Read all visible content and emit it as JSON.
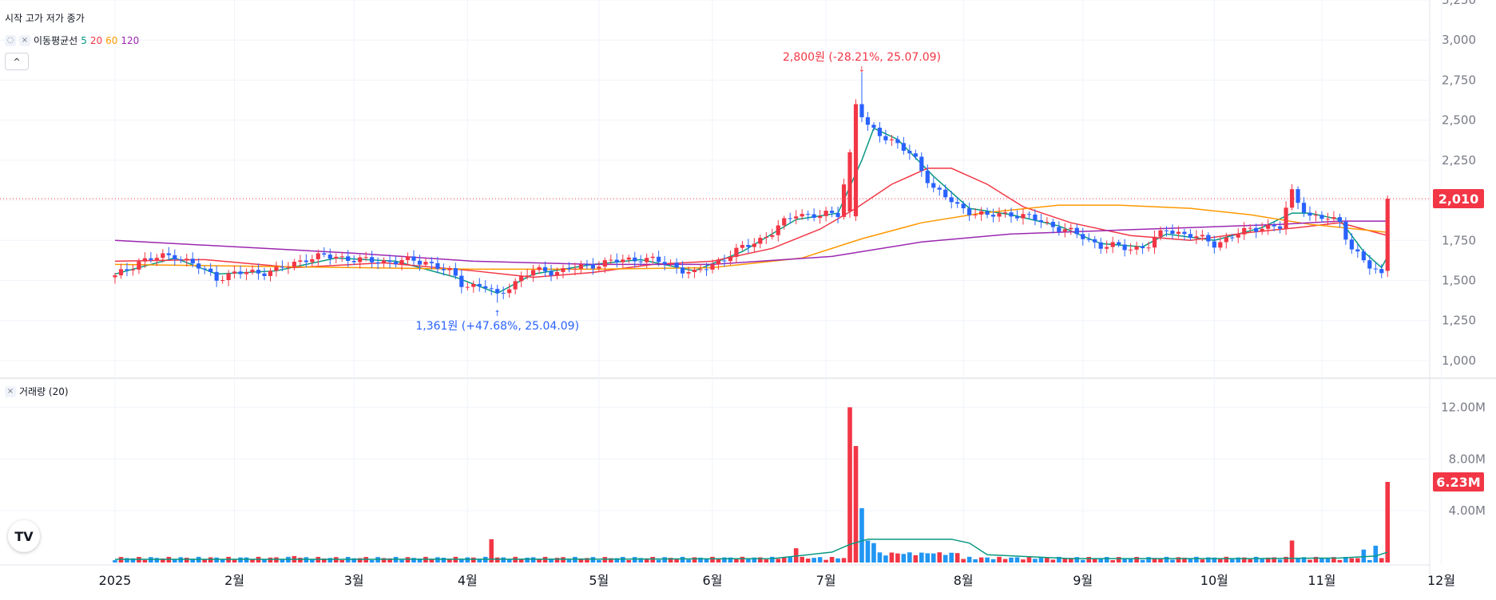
{
  "legend": {
    "ohlc_label": "시작 고가 저가 종가",
    "ma_title": "이동평균선",
    "ma_periods": [
      "5",
      "20",
      "60",
      "120"
    ],
    "volume_title": "거래량 (20)",
    "close_icon": "×",
    "hide_icon": "eye-off",
    "collapse_icon": "^"
  },
  "colors": {
    "up": "#f23645",
    "down": "#2962ff",
    "ma5": "#089981",
    "ma20": "#f23645",
    "ma60": "#ff9800",
    "ma120": "#9c27b0",
    "volume_ma": "#089981"
  },
  "annotations": {
    "high": "2,800원 (-28.21%, 25.07.09)",
    "low": "1,361원 (+47.68%, 25.04.09)"
  },
  "price_badge": "2,010",
  "volume_badge": "6.23M",
  "logo_text": "TV",
  "chart_data": [
    {
      "type": "candlestick",
      "title": "",
      "x_unit": "trading day index (0 = first visible bar, early January 2025)",
      "x_ticks": [
        {
          "label": "2025",
          "x": 0
        },
        {
          "label": "2월",
          "x": 20
        },
        {
          "label": "3월",
          "x": 40
        },
        {
          "label": "4월",
          "x": 59
        },
        {
          "label": "5월",
          "x": 81
        },
        {
          "label": "6월",
          "x": 100
        },
        {
          "label": "7월",
          "x": 119
        },
        {
          "label": "8월",
          "x": 142
        },
        {
          "label": "9월",
          "x": 162
        },
        {
          "label": "10월",
          "x": 184
        },
        {
          "label": "11월",
          "x": 202
        },
        {
          "label": "12월",
          "x": 222
        }
      ],
      "ylim": [
        900,
        3250
      ],
      "y_ticks": [
        "1,000",
        "1,250",
        "1,500",
        "1,750",
        "2,000",
        "2,250",
        "2,500",
        "2,750",
        "3,000",
        "3,250"
      ],
      "y_tick_values": [
        1000,
        1250,
        1500,
        1750,
        2000,
        2250,
        2500,
        2750,
        3000,
        3250
      ],
      "last_price": 2010,
      "x_max": 238,
      "anchors": [
        [
          0,
          1520
        ],
        [
          4,
          1620
        ],
        [
          10,
          1660
        ],
        [
          14,
          1580
        ],
        [
          17,
          1520
        ],
        [
          22,
          1550
        ],
        [
          27,
          1560
        ],
        [
          32,
          1640
        ],
        [
          37,
          1650
        ],
        [
          42,
          1620
        ],
        [
          47,
          1620
        ],
        [
          52,
          1620
        ],
        [
          56,
          1550
        ],
        [
          58,
          1480
        ],
        [
          62,
          1460
        ],
        [
          64,
          1400
        ],
        [
          66,
          1470
        ],
        [
          70,
          1560
        ],
        [
          75,
          1560
        ],
        [
          80,
          1600
        ],
        [
          84,
          1620
        ],
        [
          88,
          1640
        ],
        [
          93,
          1600
        ],
        [
          97,
          1540
        ],
        [
          101,
          1620
        ],
        [
          105,
          1700
        ],
        [
          110,
          1800
        ],
        [
          114,
          1920
        ],
        [
          118,
          1900
        ],
        [
          121,
          1920
        ],
        [
          123,
          2300
        ],
        [
          124,
          2600
        ],
        [
          126,
          2450
        ],
        [
          128,
          2420
        ],
        [
          131,
          2350
        ],
        [
          134,
          2250
        ],
        [
          137,
          2080
        ],
        [
          141,
          1960
        ],
        [
          146,
          1900
        ],
        [
          150,
          1920
        ],
        [
          154,
          1880
        ],
        [
          158,
          1830
        ],
        [
          162,
          1770
        ],
        [
          165,
          1720
        ],
        [
          170,
          1700
        ],
        [
          173,
          1720
        ],
        [
          176,
          1820
        ],
        [
          180,
          1780
        ],
        [
          184,
          1730
        ],
        [
          188,
          1790
        ],
        [
          192,
          1840
        ],
        [
          195,
          1830
        ],
        [
          197,
          2050
        ],
        [
          200,
          1900
        ],
        [
          205,
          1870
        ],
        [
          207,
          1700
        ],
        [
          210,
          1580
        ],
        [
          212,
          1540
        ],
        [
          213,
          2010
        ]
      ],
      "ma_lines": {
        "ma5": [
          [
            0,
            1540
          ],
          [
            10,
            1640
          ],
          [
            17,
            1540
          ],
          [
            27,
            1560
          ],
          [
            37,
            1640
          ],
          [
            47,
            1620
          ],
          [
            57,
            1520
          ],
          [
            64,
            1420
          ],
          [
            70,
            1540
          ],
          [
            80,
            1600
          ],
          [
            88,
            1630
          ],
          [
            97,
            1560
          ],
          [
            105,
            1680
          ],
          [
            114,
            1880
          ],
          [
            121,
            1920
          ],
          [
            125,
            2250
          ],
          [
            127,
            2450
          ],
          [
            131,
            2380
          ],
          [
            137,
            2150
          ],
          [
            143,
            1950
          ],
          [
            150,
            1910
          ],
          [
            158,
            1840
          ],
          [
            165,
            1730
          ],
          [
            172,
            1710
          ],
          [
            176,
            1790
          ],
          [
            184,
            1750
          ],
          [
            192,
            1830
          ],
          [
            197,
            1920
          ],
          [
            200,
            1920
          ],
          [
            205,
            1880
          ],
          [
            209,
            1680
          ],
          [
            212,
            1580
          ],
          [
            213,
            1650
          ]
        ],
        "ma20": [
          [
            0,
            1620
          ],
          [
            15,
            1630
          ],
          [
            30,
            1580
          ],
          [
            45,
            1610
          ],
          [
            60,
            1560
          ],
          [
            70,
            1520
          ],
          [
            80,
            1550
          ],
          [
            90,
            1600
          ],
          [
            100,
            1620
          ],
          [
            110,
            1700
          ],
          [
            118,
            1820
          ],
          [
            124,
            1950
          ],
          [
            130,
            2100
          ],
          [
            136,
            2200
          ],
          [
            140,
            2200
          ],
          [
            146,
            2100
          ],
          [
            152,
            1960
          ],
          [
            160,
            1860
          ],
          [
            170,
            1780
          ],
          [
            180,
            1750
          ],
          [
            190,
            1800
          ],
          [
            198,
            1830
          ],
          [
            205,
            1860
          ],
          [
            210,
            1810
          ],
          [
            213,
            1780
          ]
        ],
        "ma60": [
          [
            0,
            1600
          ],
          [
            20,
            1590
          ],
          [
            40,
            1580
          ],
          [
            60,
            1570
          ],
          [
            80,
            1570
          ],
          [
            100,
            1580
          ],
          [
            115,
            1640
          ],
          [
            125,
            1760
          ],
          [
            135,
            1860
          ],
          [
            145,
            1920
          ],
          [
            158,
            1970
          ],
          [
            168,
            1970
          ],
          [
            180,
            1950
          ],
          [
            190,
            1910
          ],
          [
            200,
            1850
          ],
          [
            208,
            1820
          ],
          [
            213,
            1800
          ]
        ],
        "ma120": [
          [
            0,
            1750
          ],
          [
            20,
            1710
          ],
          [
            40,
            1670
          ],
          [
            60,
            1620
          ],
          [
            80,
            1600
          ],
          [
            100,
            1600
          ],
          [
            120,
            1650
          ],
          [
            135,
            1740
          ],
          [
            150,
            1790
          ],
          [
            165,
            1810
          ],
          [
            180,
            1830
          ],
          [
            195,
            1850
          ],
          [
            205,
            1870
          ],
          [
            213,
            1870
          ]
        ]
      }
    },
    {
      "type": "bar",
      "title": "거래량 (20)",
      "ylim": [
        0,
        14000000
      ],
      "y_ticks": [
        "4.00M",
        "8.00M",
        "12.00M"
      ],
      "y_tick_values": [
        4000000,
        8000000,
        12000000
      ],
      "last_value": 6230000,
      "spikes": [
        {
          "x": 30,
          "value": 500000,
          "up": true
        },
        {
          "x": 63,
          "value": 1800000,
          "up": true
        },
        {
          "x": 114,
          "value": 1100000,
          "up": true
        },
        {
          "x": 123,
          "value": 12000000,
          "up": true
        },
        {
          "x": 124,
          "value": 9000000,
          "up": true
        },
        {
          "x": 125,
          "value": 4200000,
          "up": false
        },
        {
          "x": 126,
          "value": 1700000,
          "up": false
        },
        {
          "x": 127,
          "value": 1500000,
          "up": false
        },
        {
          "x": 137,
          "value": 700000,
          "up": false
        },
        {
          "x": 197,
          "value": 1700000,
          "up": true
        },
        {
          "x": 209,
          "value": 1000000,
          "up": false
        },
        {
          "x": 211,
          "value": 1300000,
          "up": false
        },
        {
          "x": 213,
          "value": 6230000,
          "up": true
        }
      ],
      "ma_line": [
        [
          0,
          250000
        ],
        [
          40,
          250000
        ],
        [
          80,
          260000
        ],
        [
          110,
          300000
        ],
        [
          120,
          800000
        ],
        [
          123,
          1400000
        ],
        [
          126,
          1800000
        ],
        [
          140,
          1800000
        ],
        [
          143,
          1500000
        ],
        [
          146,
          600000
        ],
        [
          160,
          300000
        ],
        [
          190,
          300000
        ],
        [
          205,
          350000
        ],
        [
          211,
          500000
        ],
        [
          213,
          800000
        ]
      ]
    }
  ]
}
